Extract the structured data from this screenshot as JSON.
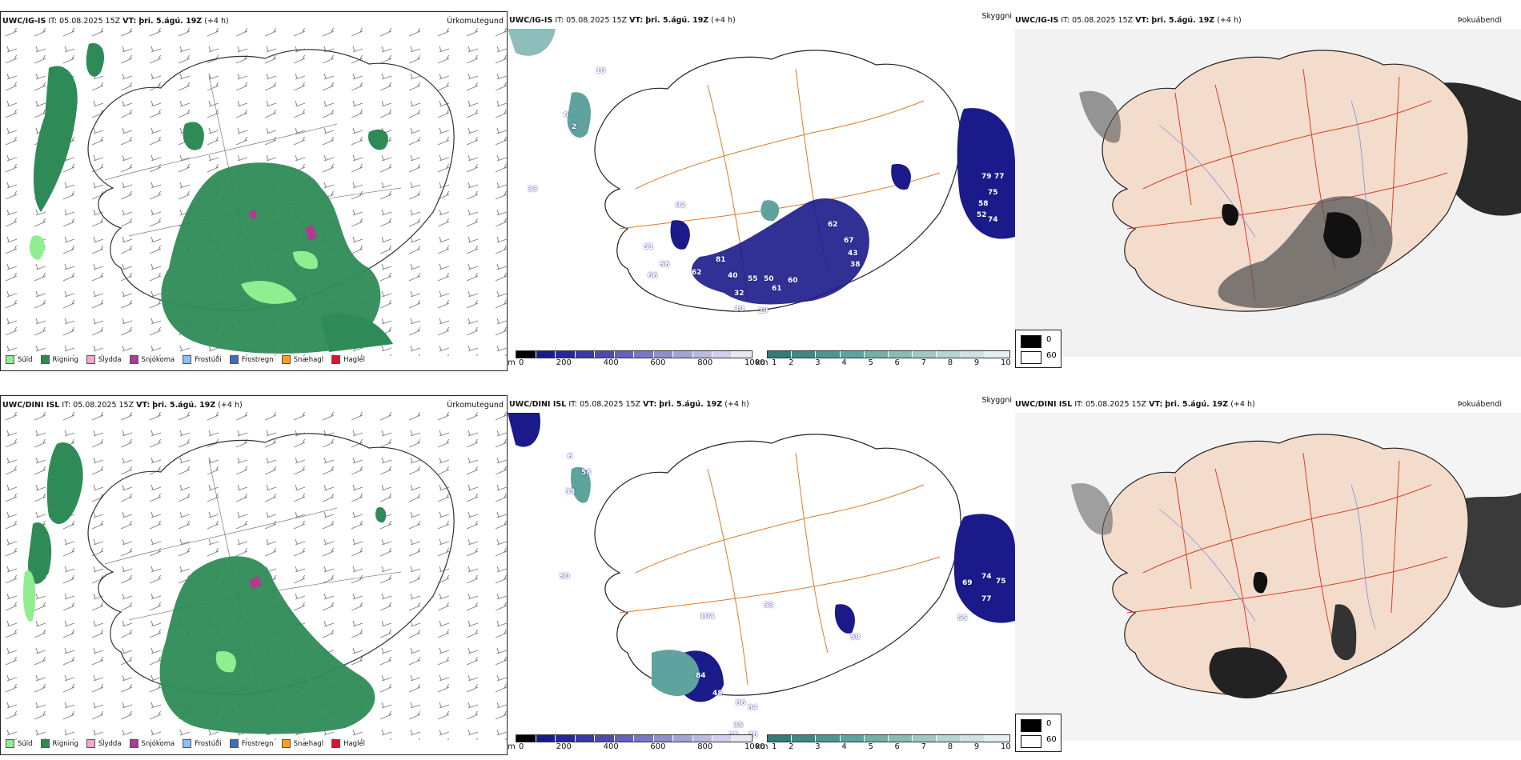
{
  "rows": [
    {
      "model": "UWC/IG-IS",
      "run": "IT: 05.08.2025 15Z",
      "vt_label": "VT:",
      "valid": "þri. 5.ágú. 19Z",
      "lead": "(+4 h)",
      "precip_title": "Úrkomutegund",
      "vis_title": "Skyggni",
      "cloud_title": "Þokuábendi",
      "vis_numbers": [
        "10",
        "6",
        "2",
        "33",
        "92",
        "51",
        "56",
        "66",
        "62",
        "81",
        "40",
        "55",
        "50",
        "61",
        "60",
        "32",
        "30",
        "29",
        "62",
        "67",
        "43",
        "38",
        "79",
        "77",
        "75",
        "58",
        "52",
        "74"
      ]
    },
    {
      "model": "UWC/DINI ISL",
      "run": "IT: 05.08.2025 15Z",
      "vt_label": "VT:",
      "valid": "þri. 5.ágú. 19Z",
      "lead": "(+4 h)",
      "precip_title": "Úrkomutegund",
      "vis_title": "Skyggni",
      "cloud_title": "Þokuábendi",
      "vis_numbers": [
        "6",
        "58",
        "33",
        "50",
        "104",
        "53",
        "48",
        "86",
        "84",
        "35",
        "25",
        "28",
        "58",
        "69",
        "74",
        "75",
        "77",
        "55",
        "84"
      ]
    }
  ],
  "precip_legend": [
    {
      "label": "Súld",
      "color": "#90ee90"
    },
    {
      "label": "Rigning",
      "color": "#2e8b57"
    },
    {
      "label": "Slydda",
      "color": "#f4a6cf"
    },
    {
      "label": "Snjókoma",
      "color": "#b03a8e"
    },
    {
      "label": "Frostúði",
      "color": "#87bfff"
    },
    {
      "label": "Frostregn",
      "color": "#3a6fc0"
    },
    {
      "label": "Snæhagl",
      "color": "#f5a020"
    },
    {
      "label": "Haglél",
      "color": "#e3122a"
    }
  ],
  "terrain_colorbar": {
    "unit": "m",
    "ticks": [
      "0",
      "200",
      "400",
      "600",
      "800",
      "1000"
    ],
    "colors": [
      "#000000",
      "#1a1a8a",
      "#28289a",
      "#3a3aa6",
      "#4c4cb0",
      "#6262bc",
      "#7878c6",
      "#8e8ed0",
      "#a4a4da",
      "#babae4",
      "#d0d0ee",
      "#e6e6f6"
    ]
  },
  "vis_colorbar": {
    "unit": "km",
    "ticks": [
      "1",
      "2",
      "3",
      "4",
      "5",
      "6",
      "7",
      "8",
      "9",
      "10"
    ],
    "colors": [
      "#2f7d77",
      "#3d8a84",
      "#4c9791",
      "#5ea39e",
      "#72afaa",
      "#88bcb7",
      "#9fc9c5",
      "#b6d6d3",
      "#cde3e1",
      "#e4f0ef"
    ]
  },
  "cloud_legend": {
    "black_label": "0",
    "white_label": "60"
  },
  "colors": {
    "rain": "#2e8b57",
    "drizzle": "#90ee90",
    "snow": "#b03a8e",
    "navy": "#1a1a8a",
    "teal": "#5ea39e",
    "roads": "#e07a2a",
    "land": "#f3dccb",
    "redroads": "#d9402a",
    "rivers": "#7b8fe0"
  }
}
